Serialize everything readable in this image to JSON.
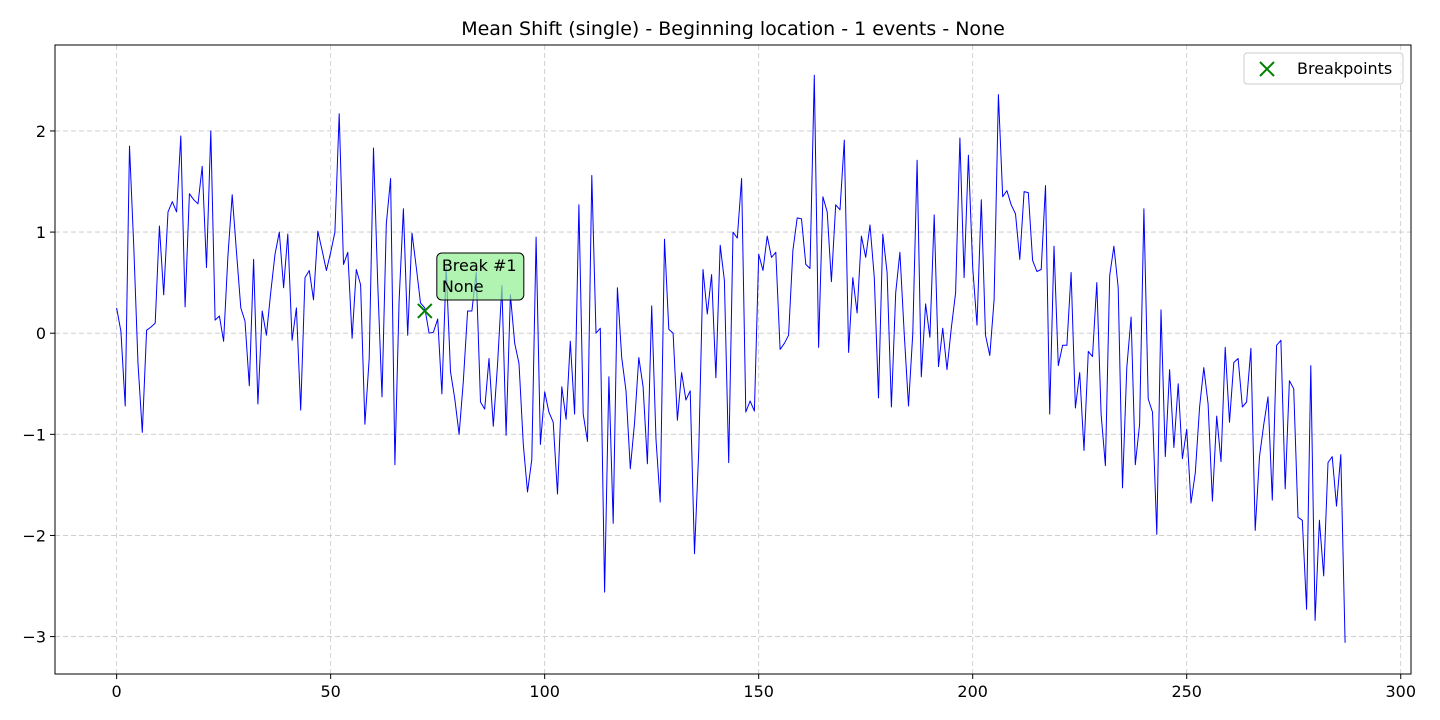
{
  "chart_data": {
    "type": "line",
    "title": "Mean Shift (single) - Beginning location - 1 events - None",
    "xlabel": "",
    "ylabel": "",
    "xlim": [
      -14.4,
      302.4
    ],
    "ylim": [
      -3.37,
      2.85
    ],
    "xticks": [
      0,
      50,
      100,
      150,
      200,
      250,
      300
    ],
    "yticks": [
      -3,
      -2,
      -1,
      0,
      1,
      2
    ],
    "xtick_labels": [
      "0",
      "50",
      "100",
      "150",
      "200",
      "250",
      "300"
    ],
    "ytick_labels": [
      "−3",
      "−2",
      "−1",
      "0",
      "1",
      "2"
    ],
    "grid": true,
    "legend": {
      "position": "top-right",
      "entries": [
        {
          "label": "Breakpoints",
          "marker": "x",
          "color": "#008000"
        }
      ]
    },
    "series": [
      {
        "color": "#0000ff",
        "x_start": 0,
        "values": [
          0.25,
          0.02,
          -0.72,
          1.85,
          0.85,
          -0.3,
          -0.98,
          0.03,
          0.06,
          0.1,
          1.06,
          0.38,
          1.2,
          1.3,
          1.2,
          1.95,
          0.26,
          1.38,
          1.32,
          1.28,
          1.65,
          0.65,
          2.0,
          0.13,
          0.17,
          -0.08,
          0.76,
          1.37,
          0.8,
          0.25,
          0.12,
          -0.52,
          0.73,
          -0.7,
          0.22,
          -0.02,
          0.4,
          0.78,
          1.0,
          0.45,
          0.98,
          -0.07,
          0.25,
          -0.76,
          0.55,
          0.62,
          0.33,
          1.01,
          0.82,
          0.62,
          0.8,
          1.0,
          2.17,
          0.68,
          0.8,
          -0.05,
          0.63,
          0.48,
          -0.9,
          -0.25,
          1.83,
          0.5,
          -0.63,
          1.08,
          1.53,
          -1.3,
          0.32,
          1.23,
          -0.02,
          0.99,
          0.65,
          0.3,
          0.25,
          0.0,
          0.01,
          0.14,
          -0.6,
          0.65,
          -0.38,
          -0.65,
          -1.0,
          -0.48,
          0.22,
          0.22,
          0.6,
          -0.68,
          -0.75,
          -0.25,
          -0.92,
          -0.3,
          0.47,
          -1.01,
          0.38,
          -0.1,
          -0.3,
          -1.1,
          -1.57,
          -1.25,
          0.95,
          -1.1,
          -0.58,
          -0.78,
          -0.88,
          -1.59,
          -0.53,
          -0.85,
          -0.08,
          -0.8,
          1.27,
          -0.8,
          -1.07,
          1.56,
          0.0,
          0.05,
          -2.56,
          -0.43,
          -1.88,
          0.45,
          -0.24,
          -0.57,
          -1.34,
          -0.88,
          -0.24,
          -0.53,
          -1.29,
          0.27,
          -1.05,
          -1.67,
          0.93,
          0.04,
          0.0,
          -0.86,
          -0.39,
          -0.66,
          -0.57,
          -2.18,
          -1.15,
          0.63,
          0.19,
          0.58,
          -0.44,
          0.87,
          0.52,
          -1.28,
          1.0,
          0.94,
          1.53,
          -0.78,
          -0.67,
          -0.77,
          0.78,
          0.62,
          0.96,
          0.75,
          0.8,
          -0.16,
          -0.1,
          -0.02,
          0.82,
          1.14,
          1.13,
          0.68,
          0.64,
          2.55,
          -0.14,
          1.35,
          1.2,
          0.51,
          1.27,
          1.22,
          1.91,
          -0.19,
          0.55,
          0.2,
          0.96,
          0.75,
          1.07,
          0.55,
          -0.64,
          0.98,
          0.6,
          -0.73,
          0.4,
          0.8,
          0.0,
          -0.72,
          0.0,
          1.71,
          -0.43,
          0.29,
          -0.04,
          1.17,
          -0.33,
          0.05,
          -0.36,
          0.05,
          0.4,
          1.93,
          0.55,
          1.76,
          0.65,
          0.08,
          1.32,
          -0.02,
          -0.22,
          0.33,
          2.36,
          1.35,
          1.41,
          1.27,
          1.18,
          0.73,
          1.4,
          1.39,
          0.72,
          0.61,
          0.63,
          1.46,
          -0.8,
          0.86,
          -0.32,
          -0.12,
          -0.12,
          0.6,
          -0.74,
          -0.39,
          -1.16,
          -0.18,
          -0.23,
          0.5,
          -0.8,
          -1.31,
          0.57,
          0.86,
          0.45,
          -1.53,
          -0.34,
          0.16,
          -1.3,
          -0.9,
          1.23,
          -0.65,
          -0.78,
          -1.99,
          0.23,
          -1.22,
          -0.36,
          -1.13,
          -0.5,
          -1.24,
          -0.95,
          -1.68,
          -1.38,
          -0.73,
          -0.34,
          -0.7,
          -1.66,
          -0.82,
          -1.27,
          -0.14,
          -0.88,
          -0.29,
          -0.25,
          -0.73,
          -0.68,
          -0.15,
          -1.95,
          -1.22,
          -0.9,
          -0.63,
          -1.65,
          -0.12,
          -0.07,
          -1.54,
          -0.47,
          -0.55,
          -1.82,
          -1.85,
          -2.73,
          -0.32,
          -2.84,
          -1.85,
          -2.4,
          -1.28,
          -1.22,
          -1.71,
          -1.2,
          -3.06
        ]
      }
    ],
    "breakpoints": [
      {
        "x": 72,
        "y": 0.22
      }
    ],
    "annotations": [
      {
        "lines": [
          "Break #1",
          "None"
        ],
        "color": "#90ee90"
      }
    ]
  }
}
